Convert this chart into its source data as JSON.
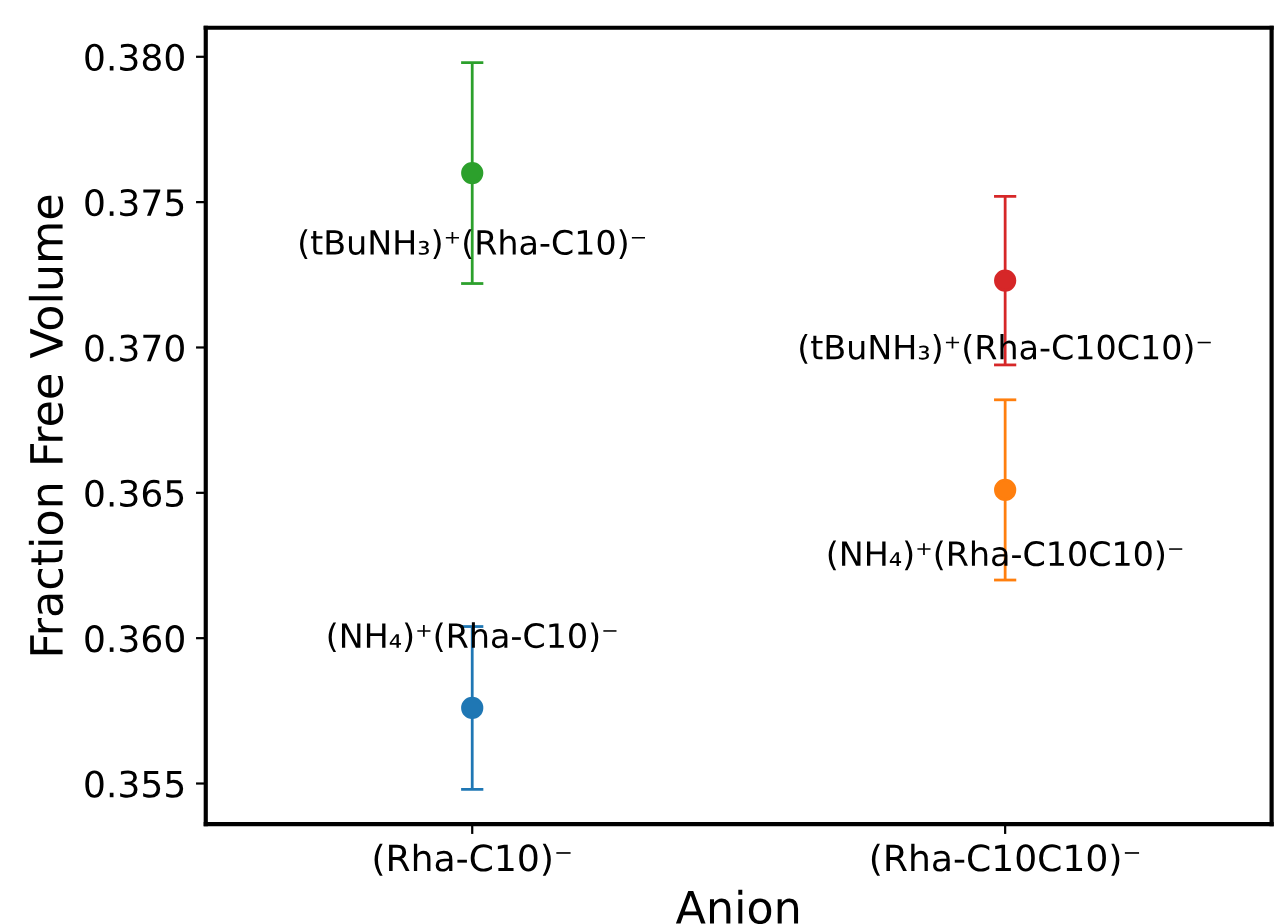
{
  "chart_data": {
    "type": "scatter",
    "xlabel": "Anion",
    "ylabel": "Fraction Free Volume",
    "categories": [
      "(Rha-C10)⁻",
      "(Rha-C10C10)⁻"
    ],
    "series": [
      {
        "name": "(NH₄)⁺(Rha-C10)⁻",
        "color": "#1f77b4",
        "x": [
          "(Rha-C10)⁻"
        ],
        "values": [
          0.3576
        ],
        "errors": [
          0.0028
        ]
      },
      {
        "name": "(NH₄)⁺(Rha-C10C10)⁻",
        "color": "#ff7f0e",
        "x": [
          "(Rha-C10C10)⁻"
        ],
        "values": [
          0.3651
        ],
        "errors": [
          0.0031
        ]
      },
      {
        "name": "(tBuNH₃)⁺(Rha-C10)⁻",
        "color": "#2ca02c",
        "x": [
          "(Rha-C10)⁻"
        ],
        "values": [
          0.376
        ],
        "errors": [
          0.0038
        ]
      },
      {
        "name": "(tBuNH₃)⁺(Rha-C10C10)⁻",
        "color": "#d62728",
        "x": [
          "(Rha-C10C10)⁻"
        ],
        "values": [
          0.3723
        ],
        "errors": [
          0.0029
        ]
      }
    ],
    "ylim": [
      0.3536,
      0.381
    ],
    "yticks": [
      0.355,
      {
        "value": 0.36,
        "label": "0.360"
      },
      0.365,
      {
        "value": 0.37,
        "label": "0.370"
      },
      0.375,
      {
        "value": 0.38,
        "label": "0.380"
      }
    ],
    "marker": "circle",
    "grid": false,
    "legend": false
  }
}
